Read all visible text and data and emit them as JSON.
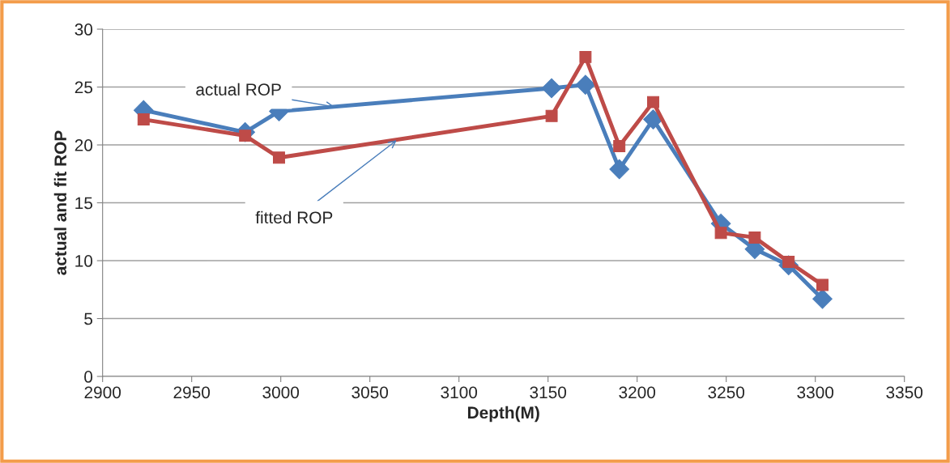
{
  "chart_data": {
    "type": "line",
    "xlabel": "Depth(M)",
    "ylabel": "actual and fit ROP",
    "x": [
      2923,
      2980,
      2999,
      3152,
      3171,
      3190,
      3209,
      3247,
      3266,
      3285,
      3304
    ],
    "series": [
      {
        "color": "#4a7ebb",
        "marker": "diamond",
        "values": [
          23.0,
          21.1,
          22.9,
          24.9,
          25.2,
          17.9,
          22.2,
          13.2,
          11.0,
          9.6,
          6.7
        ]
      },
      {
        "color": "#be4b48",
        "marker": "square",
        "values": [
          22.2,
          20.8,
          18.9,
          22.5,
          27.6,
          19.9,
          23.7,
          12.4,
          12.0,
          9.9,
          7.9
        ]
      }
    ],
    "annotations": [
      {
        "text": "actual ROP",
        "x": 3030,
        "y": 23.3
      },
      {
        "text": "fitted ROP",
        "x": 3065,
        "y": 20.4
      }
    ],
    "xlim": [
      2900,
      3350
    ],
    "xticks": [
      2900,
      2950,
      3000,
      3050,
      3100,
      3150,
      3200,
      3250,
      3300,
      3350
    ],
    "ylim": [
      0,
      30
    ],
    "yticks": [
      0,
      5,
      10,
      15,
      20,
      25,
      30
    ],
    "grid": "y",
    "legend": false,
    "line_style": "solid"
  }
}
